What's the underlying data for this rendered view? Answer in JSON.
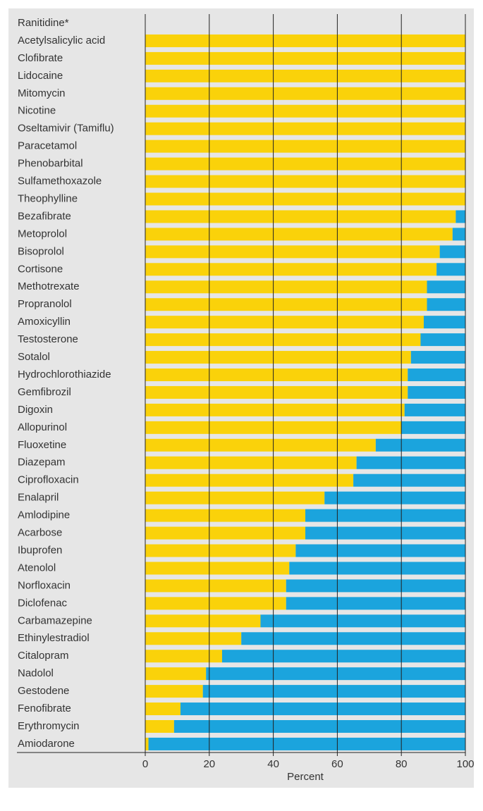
{
  "chart_data": {
    "type": "stacked-bar-horizontal",
    "categories": [
      "Ranitidine*",
      "Acetylsalicylic acid",
      "Clofibrate",
      "Lidocaine",
      "Mitomycin",
      "Nicotine",
      "Oseltamivir (Tamiflu)",
      "Paracetamol",
      "Phenobarbital",
      "Sulfamethoxazole",
      "Theophylline",
      "Bezafibrate",
      "Metoprolol",
      "Bisoprolol",
      "Cortisone",
      "Methotrexate",
      "Propranolol",
      "Amoxicyllin",
      "Testosterone",
      "Sotalol",
      "Hydrochlorothiazide",
      "Gemfibrozil",
      "Digoxin",
      "Allopurinol",
      "Fluoxetine",
      "Diazepam",
      "Ciprofloxacin",
      "Enalapril",
      "Amlodipine",
      "Acarbose",
      "Ibuprofen",
      "Atenolol",
      "Norfloxacin",
      "Diclofenac",
      "Carbamazepine",
      "Ethinylestradiol",
      "Citalopram",
      "Nadolol",
      "Gestodene",
      "Fenofibrate",
      "Erythromycin",
      "Amiodarone"
    ],
    "series": [
      {
        "color": "#fad20a",
        "values": [
          null,
          100,
          100,
          100,
          100,
          100,
          100,
          100,
          100,
          100,
          100,
          97,
          96,
          92,
          91,
          88,
          88,
          87,
          86,
          83,
          82,
          82,
          81,
          80,
          72,
          66,
          65,
          56,
          50,
          50,
          47,
          45,
          44,
          44,
          36,
          30,
          24,
          19,
          18,
          11,
          9,
          1
        ]
      },
      {
        "color": "#1ba4dd",
        "values": [
          null,
          0,
          0,
          0,
          0,
          0,
          0,
          0,
          0,
          0,
          0,
          3,
          4,
          8,
          9,
          12,
          12,
          13,
          14,
          17,
          18,
          18,
          19,
          20,
          28,
          34,
          35,
          44,
          50,
          50,
          53,
          55,
          56,
          56,
          64,
          70,
          76,
          81,
          82,
          89,
          91,
          99
        ]
      }
    ],
    "xlim": [
      0,
      100
    ],
    "xticks": [
      0,
      20,
      40,
      60,
      80,
      100
    ],
    "xlabel": "Percent",
    "grid": true
  }
}
